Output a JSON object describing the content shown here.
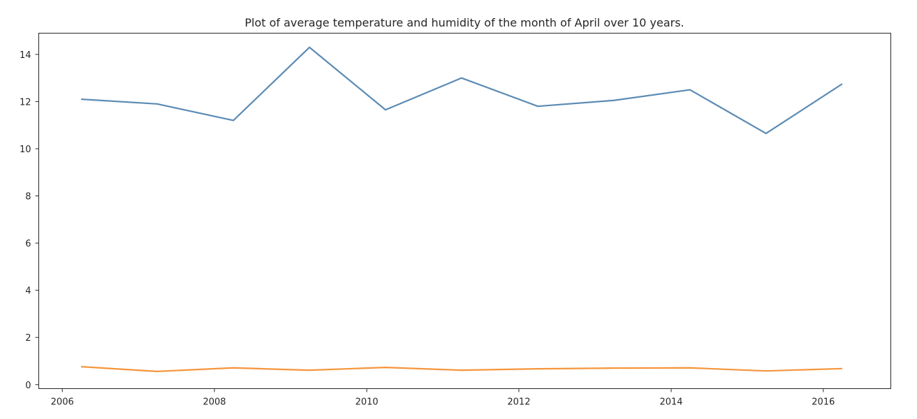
{
  "chart_data": {
    "type": "line",
    "title": "Plot of average temperature and humidity of the month of April over 10 years.",
    "xlabel": "",
    "ylabel": "",
    "x_date_format": "YYYY-MM-DD",
    "x": [
      "2006-04-01",
      "2007-04-01",
      "2008-04-01",
      "2009-04-01",
      "2010-04-01",
      "2011-04-01",
      "2012-04-01",
      "2013-04-01",
      "2014-04-01",
      "2015-04-01",
      "2016-04-01"
    ],
    "xlim": [
      "2005-09-10",
      "2016-11-20"
    ],
    "ylim": [
      -0.17,
      14.9
    ],
    "xticks": [
      "2006",
      "2008",
      "2010",
      "2012",
      "2014",
      "2016"
    ],
    "yticks": [
      0,
      2,
      4,
      6,
      8,
      10,
      12,
      14
    ],
    "grid": false,
    "legend": "none",
    "series": [
      {
        "color": "#5b8bb4",
        "values": [
          12.1,
          11.9,
          11.2,
          14.3,
          11.65,
          13.0,
          11.8,
          12.05,
          12.5,
          10.65,
          12.75
        ]
      },
      {
        "color": "#f5953b",
        "values": [
          0.76,
          0.56,
          0.71,
          0.61,
          0.73,
          0.61,
          0.67,
          0.7,
          0.71,
          0.58,
          0.68
        ]
      }
    ]
  }
}
